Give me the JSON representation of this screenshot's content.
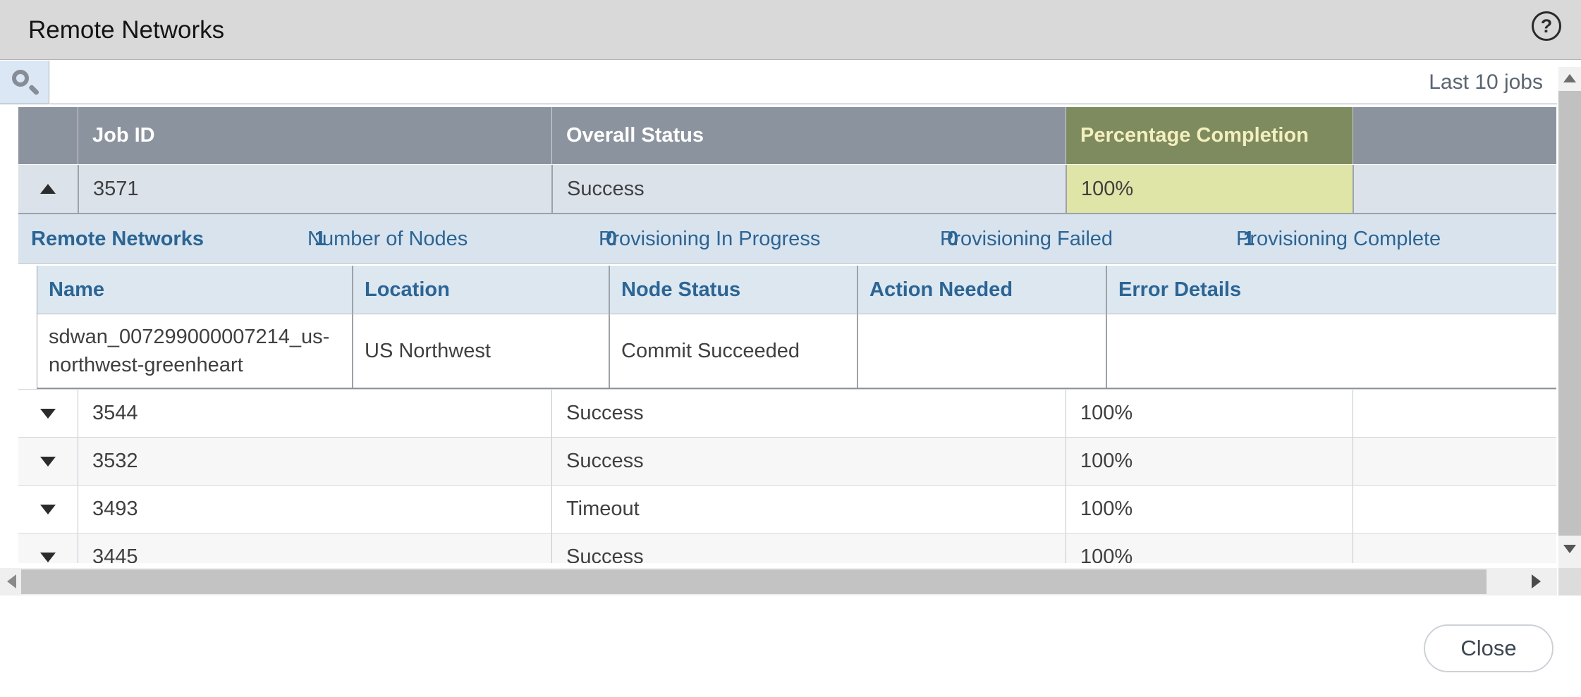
{
  "dialog": {
    "title": "Remote Networks",
    "help_glyph": "?",
    "close_label": "Close"
  },
  "toolbar": {
    "search_value": "",
    "jobs_filter_label": "Last 10 jobs"
  },
  "jobs_table": {
    "columns": {
      "job_id": "Job ID",
      "overall_status": "Overall Status",
      "percentage_completion": "Percentage Completion"
    },
    "sorted_column": "Percentage Completion",
    "rows": [
      {
        "job_id": "3571",
        "overall_status": "Success",
        "percentage_completion": "100%",
        "expanded": true
      },
      {
        "job_id": "3544",
        "overall_status": "Success",
        "percentage_completion": "100%",
        "expanded": false
      },
      {
        "job_id": "3532",
        "overall_status": "Success",
        "percentage_completion": "100%",
        "expanded": false
      },
      {
        "job_id": "3493",
        "overall_status": "Timeout",
        "percentage_completion": "100%",
        "expanded": false
      },
      {
        "job_id": "3445",
        "overall_status": "Success",
        "percentage_completion": "100%",
        "expanded": false
      }
    ]
  },
  "expanded_panel": {
    "title": "Remote Networks",
    "stats": [
      {
        "label": "Number of Nodes",
        "value": "1"
      },
      {
        "label": "Provisioning In Progress",
        "value": "0"
      },
      {
        "label": "Provisioning Failed",
        "value": "0"
      },
      {
        "label": "Provisioning Complete",
        "value": "1"
      }
    ],
    "nodes_table": {
      "columns": {
        "name": "Name",
        "location": "Location",
        "node_status": "Node Status",
        "action_needed": "Action Needed",
        "error_details": "Error Details"
      },
      "rows": [
        {
          "name": "sdwan_007299000007214_us-northwest-greenheart",
          "location": "US Northwest",
          "node_status": "Commit Succeeded",
          "action_needed": "",
          "error_details": ""
        }
      ]
    }
  },
  "colors": {
    "accent_blue": "#2a6595",
    "header_gray": "#8b949e",
    "sorted_header_olive": "#7e8b5e",
    "sorted_cell_yellow": "#dfe4a7",
    "selected_row_blue": "#dbe2ea"
  }
}
